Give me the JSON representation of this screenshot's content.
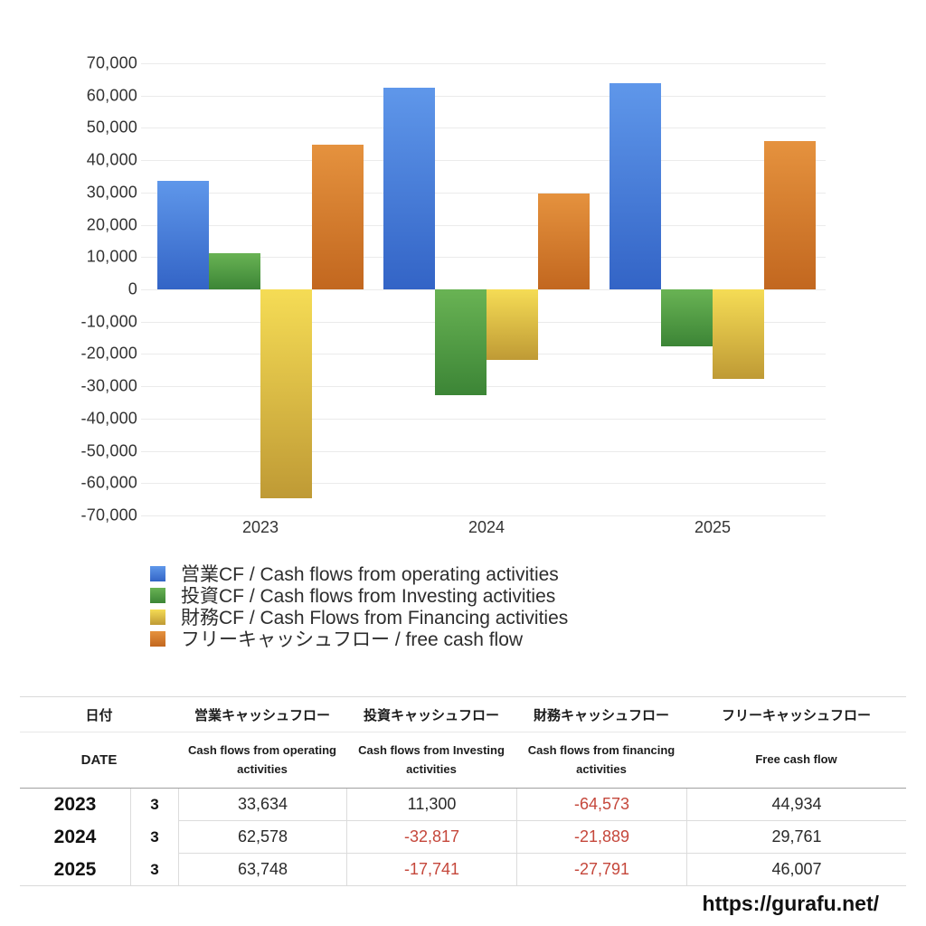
{
  "chart_data": {
    "type": "bar",
    "title": "",
    "xlabel": "",
    "ylabel": "",
    "categories": [
      "2023",
      "2024",
      "2025"
    ],
    "series": [
      {
        "key": "operating-cf",
        "name": "営業CF / Cash flows from operating activities",
        "values": [
          33634,
          62578,
          63748
        ],
        "color_top": "#5f97ea",
        "color_bottom": "#3364c6"
      },
      {
        "key": "investing-cf",
        "name": "投資CF / Cash flows from Investing activities",
        "values": [
          11300,
          -32817,
          -17741
        ],
        "color_top": "#69b354",
        "color_bottom": "#3c8536"
      },
      {
        "key": "financing-cf",
        "name": "財務CF / Cash Flows from Financing activities",
        "values": [
          -64573,
          -21889,
          -27791
        ],
        "color_top": "#f5dc55",
        "color_bottom": "#bf9a35"
      },
      {
        "key": "free-cash-flow",
        "name": "フリーキャッシュフロー / free cash flow",
        "values": [
          44934,
          29761,
          46007
        ],
        "color_top": "#e5923e",
        "color_bottom": "#c2671f"
      }
    ],
    "ylim": [
      -70000,
      70000
    ],
    "ytick_step": 10000,
    "grid": true,
    "legend_position": "bottom-left"
  },
  "table": {
    "header_ja": {
      "date": "日付",
      "operating": "営業キャッシュフロー",
      "investing": "投資キャッシュフロー",
      "financing": "財務キャッシュフロー",
      "free": "フリーキャッシュフロー"
    },
    "header_en": {
      "date": "DATE",
      "operating": "Cash flows from operating activities",
      "investing": "Cash flows from Investing activities",
      "financing": "Cash flows from financing activities",
      "free": "Free cash flow"
    },
    "rows": [
      {
        "year": "2023",
        "month": "3",
        "values": [
          "33,634",
          "11,300",
          "-64,573",
          "44,934"
        ]
      },
      {
        "year": "2024",
        "month": "3",
        "values": [
          "62,578",
          "-32,817",
          "-21,889",
          "29,761"
        ]
      },
      {
        "year": "2025",
        "month": "3",
        "values": [
          "63,748",
          "-17,741",
          "-27,791",
          "46,007"
        ]
      }
    ]
  },
  "footer": {
    "site_url": "https://gurafu.net/"
  },
  "colors": {
    "negative_value": "#c5473b",
    "grid_line": "#ebebeb",
    "axis_text": "#333333",
    "table_border_light": "#dcdcdc",
    "table_border_dark": "#a0a0a0"
  }
}
